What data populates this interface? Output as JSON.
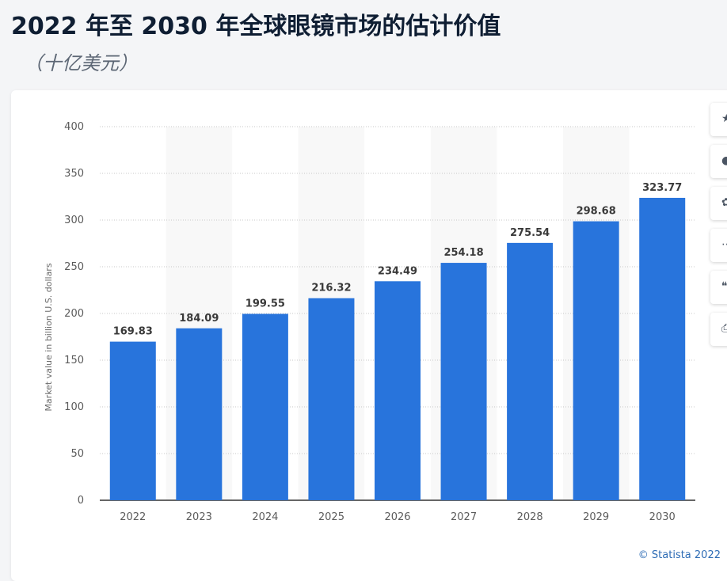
{
  "page": {
    "title": "2022 年至 2030 年全球眼镜市场的估计价值",
    "subtitle": "（十亿美元）",
    "copyright": "© Statista 2022"
  },
  "toolbar": {
    "items": [
      {
        "icon": "star-icon",
        "glyph": "★"
      },
      {
        "icon": "bell-icon",
        "glyph": "●"
      },
      {
        "icon": "gear-icon",
        "glyph": "✿"
      },
      {
        "icon": "share-icon",
        "glyph": "⋯"
      },
      {
        "icon": "quote-icon",
        "glyph": "❝"
      },
      {
        "icon": "print-icon",
        "glyph": "⎙"
      }
    ]
  },
  "chart_data": {
    "type": "bar",
    "categories": [
      "2022",
      "2023",
      "2024",
      "2025",
      "2026",
      "2027",
      "2028",
      "2029",
      "2030"
    ],
    "values": [
      169.83,
      184.09,
      199.55,
      216.32,
      234.49,
      254.18,
      275.54,
      298.68,
      323.77
    ],
    "value_labels": [
      "169.83",
      "184.09",
      "199.55",
      "216.32",
      "234.49",
      "254.18",
      "275.54",
      "298.68",
      "323.77"
    ],
    "ylabel": "Market value in billion U.S. dollars",
    "ylim": [
      0,
      400
    ],
    "yticks": [
      "0",
      "50",
      "100",
      "150",
      "200",
      "250",
      "300",
      "350",
      "400"
    ],
    "grid": true,
    "bar_color": "#2874dc",
    "alt_band_color": "#f8f8f8"
  }
}
